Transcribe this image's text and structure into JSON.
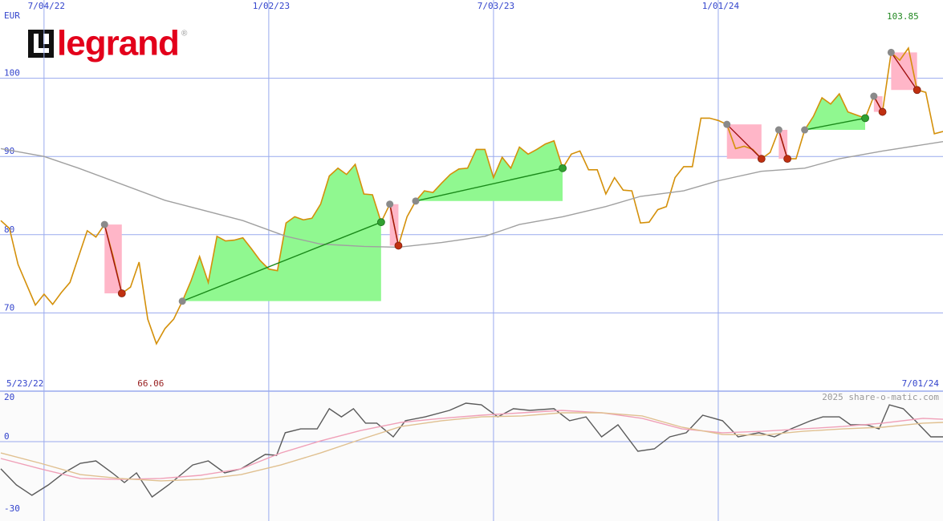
{
  "logo": "legrand",
  "credit": "2025 share-o-matic.com",
  "chart_data": [
    {
      "type": "line",
      "y_label": "EUR",
      "xlim": [
        0,
        109
      ],
      "xticks": [
        {
          "value": 5,
          "label": "7/04/22"
        },
        {
          "value": 31,
          "label": "1/02/23"
        },
        {
          "value": 57,
          "label": "7/03/23"
        },
        {
          "value": 83,
          "label": "1/01/24"
        }
      ],
      "ylim": [
        60,
        110
      ],
      "yticks": [
        70,
        80,
        90,
        100
      ],
      "grid": true,
      "date_range": [
        "5/23/22",
        "7/01/24"
      ],
      "high": 103.85,
      "low": 66.06,
      "series": [
        {
          "color": "#d4900a",
          "values": [
            81.8,
            80.8,
            76.2,
            73.6,
            71.0,
            72.4,
            71.1,
            72.6,
            73.9,
            77.2,
            80.5,
            79.7,
            81.3,
            77.2,
            72.5,
            73.3,
            76.5,
            69.2,
            66.06,
            68.0,
            69.2,
            71.5,
            74.1,
            77.2,
            73.9,
            79.8,
            79.2,
            79.3,
            79.6,
            78.2,
            76.7,
            75.6,
            75.4,
            81.5,
            82.3,
            81.9,
            82.1,
            83.9,
            87.5,
            88.5,
            87.7,
            89.0,
            85.2,
            85.1,
            81.6,
            83.9,
            78.6,
            82.3,
            84.3,
            85.6,
            85.4,
            86.6,
            87.7,
            88.4,
            88.5,
            90.9,
            90.9,
            87.3,
            89.9,
            88.5,
            91.2,
            90.3,
            90.9,
            91.6,
            92.0,
            88.5,
            90.3,
            90.7,
            88.3,
            88.3,
            85.2,
            87.3,
            85.7,
            85.6,
            81.5,
            81.6,
            83.2,
            83.6,
            87.3,
            88.7,
            88.7,
            94.9,
            94.9,
            94.6,
            94.1,
            91.0,
            91.3,
            90.9,
            89.7,
            90.5,
            93.4,
            89.7,
            89.7,
            93.4,
            95.1,
            97.5,
            96.7,
            98.0,
            95.7,
            95.3,
            94.9,
            97.7,
            95.7,
            103.3,
            102.3,
            103.85,
            98.5,
            98.2,
            92.9,
            93.2
          ]
        },
        {
          "color": "#a0a0a0",
          "x": [
            0,
            5,
            9,
            19,
            28,
            33,
            37,
            42,
            46,
            51,
            56,
            60,
            65,
            70,
            74,
            79,
            83,
            88,
            93,
            97,
            102,
            109
          ],
          "values": [
            91.0,
            90.0,
            88.5,
            84.4,
            81.8,
            79.8,
            78.8,
            78.5,
            78.4,
            79.0,
            79.8,
            81.3,
            82.3,
            83.6,
            84.9,
            85.6,
            86.9,
            88.1,
            88.5,
            89.7,
            90.7,
            91.9
          ]
        }
      ],
      "trades": [
        {
          "entry": 12,
          "exit": 14,
          "result": "loss"
        },
        {
          "entry": 21,
          "exit": 44,
          "result": "win"
        },
        {
          "entry": 45,
          "exit": 46,
          "result": "loss"
        },
        {
          "entry": 48,
          "exit": 65,
          "result": "win"
        },
        {
          "entry": 84,
          "exit": 88,
          "result": "loss"
        },
        {
          "entry": 90,
          "exit": 91,
          "result": "loss"
        },
        {
          "entry": 93,
          "exit": 100,
          "result": "win"
        },
        {
          "entry": 101,
          "exit": 102,
          "result": "loss"
        },
        {
          "entry": 103,
          "exit": 106,
          "result": "loss"
        }
      ]
    },
    {
      "type": "line",
      "xlim": [
        0,
        109
      ],
      "ylim": [
        -33,
        21
      ],
      "yticks": [
        20,
        0,
        -30
      ],
      "zero_line": true,
      "series": [
        {
          "color": "#5a5a5a",
          "x": [
            0,
            1.8,
            3.6,
            5.5,
            7.3,
            9.2,
            11.0,
            12.9,
            14.3,
            15.7,
            17.5,
            19.4,
            22.2,
            24.0,
            25.9,
            27.8,
            30.6,
            31.9,
            32.9,
            34.7,
            36.6,
            38.0,
            39.4,
            40.8,
            42.2,
            43.5,
            45.4,
            46.8,
            49.1,
            51.9,
            53.8,
            55.6,
            57.5,
            59.3,
            61.2,
            64.0,
            65.8,
            67.7,
            69.5,
            71.4,
            73.7,
            75.6,
            77.4,
            79.3,
            81.2,
            83.5,
            85.3,
            87.7,
            89.5,
            91.4,
            93.7,
            95.1,
            97.0,
            98.3,
            100.2,
            101.6,
            102.8,
            104.4,
            105.8,
            107.6,
            109
          ],
          "values": [
            -11.3,
            -18,
            -22.3,
            -18,
            -13,
            -9,
            -8,
            -13,
            -17,
            -13,
            -23,
            -18,
            -9.7,
            -8,
            -13,
            -11.3,
            -5.3,
            -5.7,
            3.7,
            5.3,
            5.3,
            13.7,
            10.3,
            13.7,
            7.7,
            7.7,
            2,
            8.7,
            10.3,
            13,
            16,
            15.3,
            10.3,
            13.7,
            13,
            13.7,
            8.7,
            10.3,
            2,
            7,
            -4,
            -3,
            2,
            3.7,
            11,
            8.7,
            2,
            3.7,
            2,
            5.3,
            8.7,
            10.3,
            10.3,
            7,
            7,
            5.3,
            15.3,
            13.7,
            8.7,
            2,
            2
          ]
        },
        {
          "color": "#f0a0b8",
          "x": [
            0,
            4.6,
            9.2,
            13.8,
            18.5,
            23.1,
            27.8,
            32.4,
            37.0,
            41.7,
            46.3,
            51.0,
            55.6,
            60.3,
            64.9,
            69.5,
            74.2,
            78.8,
            83.5,
            88.1,
            92.8,
            97.4,
            102.0,
            106.7,
            109
          ],
          "values": [
            -7,
            -11.3,
            -15.3,
            -15.7,
            -15.3,
            -14,
            -11.3,
            -4.7,
            0.3,
            4.7,
            8,
            9.7,
            11,
            12,
            13,
            12,
            9.7,
            5.3,
            3.7,
            4.3,
            5.3,
            6.3,
            7.7,
            9.7,
            9.3
          ]
        },
        {
          "color": "#e0c090",
          "x": [
            0,
            4.6,
            9.2,
            13.8,
            18.5,
            23.1,
            27.8,
            32.4,
            37.0,
            41.7,
            46.3,
            51.0,
            55.6,
            60.3,
            64.9,
            69.5,
            74.2,
            78.8,
            83.5,
            88.1,
            92.8,
            97.4,
            102.0,
            106.7,
            109
          ],
          "values": [
            -4.7,
            -9,
            -13.7,
            -15.3,
            -16.3,
            -15.7,
            -13.7,
            -9.7,
            -4.7,
            1,
            6.3,
            8.7,
            10.3,
            10.7,
            12,
            12,
            10.7,
            6,
            3,
            2.7,
            4.3,
            5.3,
            6,
            7.7,
            8
          ]
        }
      ]
    }
  ]
}
